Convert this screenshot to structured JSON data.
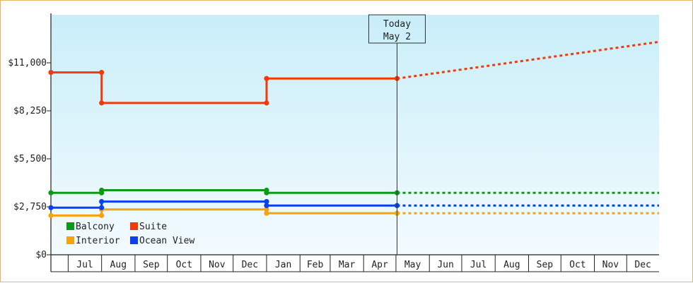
{
  "chart_data": {
    "type": "line",
    "title": "",
    "xlabel": "",
    "ylabel": "",
    "ylim": [
      0,
      13750
    ],
    "yticks": [
      {
        "value": 0,
        "label": "$0"
      },
      {
        "value": 2750,
        "label": "$2,750"
      },
      {
        "value": 5500,
        "label": "$5,500"
      },
      {
        "value": 8250,
        "label": "$8,250"
      },
      {
        "value": 11000,
        "label": "$11,000"
      }
    ],
    "x_start": "2024-06-15",
    "x_end": "2025-12-31",
    "months": [
      {
        "label": "Jul",
        "start": "2024-07-01"
      },
      {
        "label": "Aug",
        "start": "2024-08-01"
      },
      {
        "label": "Sep",
        "start": "2024-09-01"
      },
      {
        "label": "Oct",
        "start": "2024-10-01"
      },
      {
        "label": "Nov",
        "start": "2024-11-01"
      },
      {
        "label": "Dec",
        "start": "2024-12-01"
      },
      {
        "label": "Jan",
        "start": "2025-01-01"
      },
      {
        "label": "Feb",
        "start": "2025-02-01"
      },
      {
        "label": "Mar",
        "start": "2025-03-01"
      },
      {
        "label": "Apr",
        "start": "2025-04-01"
      },
      {
        "label": "May",
        "start": "2025-05-01"
      },
      {
        "label": "Jun",
        "start": "2025-06-01"
      },
      {
        "label": "Jul",
        "start": "2025-07-01"
      },
      {
        "label": "Aug",
        "start": "2025-08-01"
      },
      {
        "label": "Sep",
        "start": "2025-09-01"
      },
      {
        "label": "Oct",
        "start": "2025-10-01"
      },
      {
        "label": "Nov",
        "start": "2025-11-01"
      },
      {
        "label": "Dec",
        "start": "2025-12-01"
      }
    ],
    "today": {
      "line1": "Today",
      "line2": "May 2",
      "date": "2025-05-02"
    },
    "series": [
      {
        "name": "Balcony",
        "color": "#0a9a17",
        "points": [
          {
            "x": "2024-06-15",
            "y": 3550
          },
          {
            "x": "2024-08-01",
            "y": 3550
          },
          {
            "x": "2024-08-01",
            "y": 3700
          },
          {
            "x": "2025-01-01",
            "y": 3700
          },
          {
            "x": "2025-01-01",
            "y": 3550
          },
          {
            "x": "2025-05-02",
            "y": 3550
          }
        ],
        "forecast": [
          {
            "x": "2025-05-02",
            "y": 3550
          },
          {
            "x": "2025-12-31",
            "y": 3550
          }
        ]
      },
      {
        "name": "Suite",
        "color": "#f03a0c",
        "points": [
          {
            "x": "2024-06-15",
            "y": 10450
          },
          {
            "x": "2024-08-01",
            "y": 10450
          },
          {
            "x": "2024-08-01",
            "y": 8700
          },
          {
            "x": "2025-01-01",
            "y": 8700
          },
          {
            "x": "2025-01-01",
            "y": 10100
          },
          {
            "x": "2025-05-02",
            "y": 10100
          }
        ],
        "forecast": [
          {
            "x": "2025-05-02",
            "y": 10100
          },
          {
            "x": "2025-12-31",
            "y": 12200
          }
        ]
      },
      {
        "name": "Interior",
        "color": "#f5a40f",
        "points": [
          {
            "x": "2024-06-15",
            "y": 2250
          },
          {
            "x": "2024-08-01",
            "y": 2250
          },
          {
            "x": "2024-08-01",
            "y": 2600
          },
          {
            "x": "2025-01-01",
            "y": 2600
          },
          {
            "x": "2025-01-01",
            "y": 2380
          },
          {
            "x": "2025-05-02",
            "y": 2380
          }
        ],
        "forecast": [
          {
            "x": "2025-05-02",
            "y": 2380
          },
          {
            "x": "2025-12-31",
            "y": 2380
          }
        ]
      },
      {
        "name": "Ocean View",
        "color": "#0b3ff0",
        "points": [
          {
            "x": "2024-06-15",
            "y": 2700
          },
          {
            "x": "2024-08-01",
            "y": 2700
          },
          {
            "x": "2024-08-01",
            "y": 3050
          },
          {
            "x": "2025-01-01",
            "y": 3050
          },
          {
            "x": "2025-01-01",
            "y": 2820
          },
          {
            "x": "2025-05-02",
            "y": 2820
          }
        ],
        "forecast": [
          {
            "x": "2025-05-02",
            "y": 2820
          },
          {
            "x": "2025-12-31",
            "y": 2820
          }
        ]
      }
    ],
    "legend": {
      "position": "bottom-left",
      "order": [
        "Balcony",
        "Suite",
        "Interior",
        "Ocean View"
      ]
    },
    "grid": false,
    "background": {
      "top": "#c9eef9",
      "bottom": "#f3fbfe"
    }
  }
}
